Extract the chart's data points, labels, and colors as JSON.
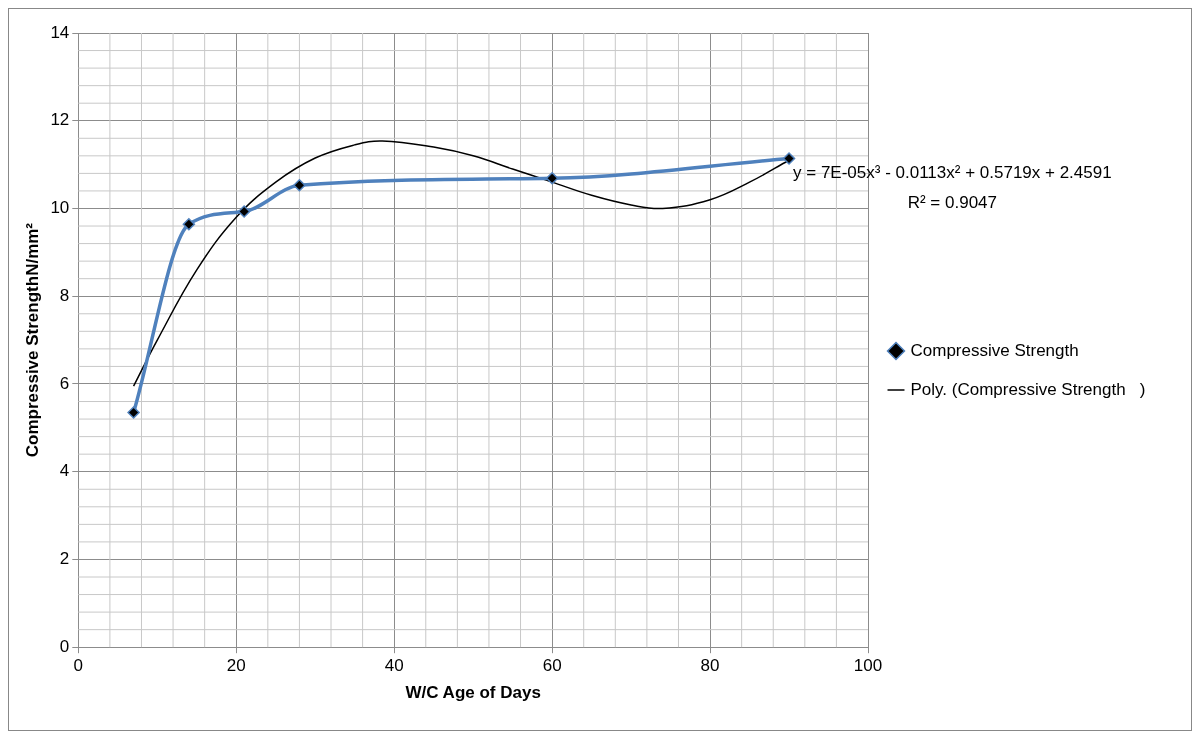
{
  "chart_data": {
    "type": "line",
    "xlabel": "W/C Age of Days",
    "ylabel": "Compressive StrengthN/mm²",
    "xlim": [
      0,
      100
    ],
    "xticks": [
      0,
      20,
      40,
      60,
      80,
      100
    ],
    "ylim": [
      0,
      14
    ],
    "yticks": [
      0,
      2,
      4,
      6,
      8,
      10,
      12,
      14
    ],
    "grid": true,
    "legend": "right",
    "annotations": [
      "y = 7E-05x³ - 0.0113x² + 0.5719x + 2.4591",
      "R² = 0.9047"
    ],
    "series": [
      {
        "name": "Compressive Strength",
        "color": "#4f81bd",
        "marker": "diamond",
        "x": [
          7,
          14,
          21,
          28,
          60,
          90
        ],
        "values": [
          5.35,
          9.64,
          9.93,
          10.53,
          10.69,
          11.14
        ]
      },
      {
        "type": "line",
        "name": "Poly. (Compressive Strength   )",
        "color": "#000000",
        "marker": "none",
        "x": [
          7,
          10,
          15,
          20,
          25,
          30,
          35,
          38.5,
          45,
          50,
          55,
          60,
          65,
          70,
          74,
          80,
          85,
          90
        ],
        "values": [
          5.95,
          7.0,
          8.6,
          9.8,
          10.6,
          11.15,
          11.45,
          11.54,
          11.4,
          11.2,
          10.9,
          10.6,
          10.3,
          10.08,
          10.0,
          10.2,
          10.6,
          11.1
        ]
      }
    ]
  }
}
